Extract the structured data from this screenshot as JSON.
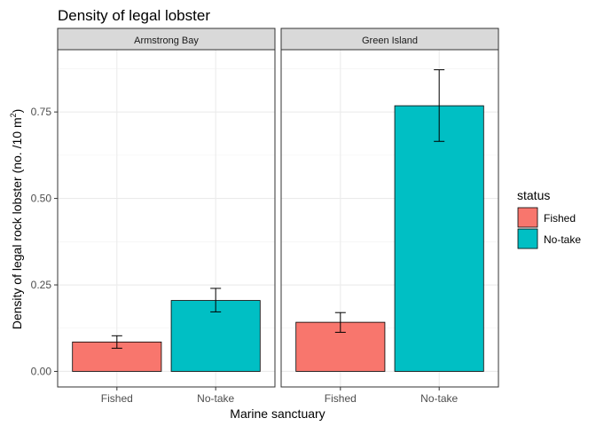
{
  "chart_data": {
    "type": "bar",
    "title": "Density of legal lobster",
    "xlabel": "Marine sanctuary",
    "ylabel": "Density of legal rock lobster (no. /10 m²)",
    "ylabel_main": "Density of legal rock lobster (no. /10 m",
    "ylabel_sup": "2",
    "ylabel_end": ")",
    "ylim": [
      -0.045,
      0.93
    ],
    "yticks": [
      0.0,
      0.25,
      0.5,
      0.75
    ],
    "ytick_labels": [
      "0.00",
      "0.25",
      "0.50",
      "0.75"
    ],
    "categories": [
      "Fished",
      "No-take"
    ],
    "grid": true,
    "legend": {
      "title": "status",
      "position": "right",
      "entries": [
        {
          "label": "Fished",
          "color": "#F8766D"
        },
        {
          "label": "No-take",
          "color": "#00BFC4"
        }
      ]
    },
    "facets": [
      {
        "label": "Armstrong Bay",
        "bars": [
          {
            "category": "Fished",
            "value": 0.085,
            "err_low": 0.067,
            "err_high": 0.103
          },
          {
            "category": "No-take",
            "value": 0.205,
            "err_low": 0.172,
            "err_high": 0.24
          }
        ]
      },
      {
        "label": "Green Island",
        "bars": [
          {
            "category": "Fished",
            "value": 0.142,
            "err_low": 0.113,
            "err_high": 0.17
          },
          {
            "category": "No-take",
            "value": 0.768,
            "err_low": 0.665,
            "err_high": 0.872
          }
        ]
      }
    ]
  }
}
